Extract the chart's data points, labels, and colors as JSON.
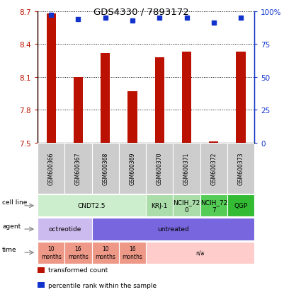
{
  "title": "GDS4330 / 7893172",
  "samples": [
    "GSM600366",
    "GSM600367",
    "GSM600368",
    "GSM600369",
    "GSM600370",
    "GSM600371",
    "GSM600372",
    "GSM600373"
  ],
  "bar_values": [
    8.68,
    8.1,
    8.32,
    7.97,
    8.28,
    8.33,
    7.51,
    8.33
  ],
  "percentile_values": [
    97,
    94,
    95,
    93,
    95,
    95,
    91,
    95
  ],
  "ylim": [
    7.5,
    8.7
  ],
  "yticks": [
    7.5,
    7.8,
    8.1,
    8.4,
    8.7
  ],
  "right_yticks": [
    0,
    25,
    50,
    75,
    100
  ],
  "right_ylabels": [
    "0",
    "25",
    "50",
    "75",
    "100%"
  ],
  "bar_color": "#bb1100",
  "dot_color": "#1133cc",
  "cell_line_data": [
    {
      "label": "CNDT2.5",
      "start": 0,
      "end": 4,
      "color": "#cceecc"
    },
    {
      "label": "KRJ-1",
      "start": 4,
      "end": 5,
      "color": "#aaddaa"
    },
    {
      "label": "NCIH_72\n0",
      "start": 5,
      "end": 6,
      "color": "#aaddaa"
    },
    {
      "label": "NCIH_72\n7",
      "start": 6,
      "end": 7,
      "color": "#55cc55"
    },
    {
      "label": "QGP",
      "start": 7,
      "end": 8,
      "color": "#33bb33"
    }
  ],
  "agent_data": [
    {
      "label": "octreotide",
      "start": 0,
      "end": 2,
      "color": "#ccbbee"
    },
    {
      "label": "untreated",
      "start": 2,
      "end": 8,
      "color": "#7766dd"
    }
  ],
  "time_data": [
    {
      "label": "10\nmonths",
      "start": 0,
      "end": 1,
      "color": "#ee9988"
    },
    {
      "label": "16\nmonths",
      "start": 1,
      "end": 2,
      "color": "#ee9988"
    },
    {
      "label": "10\nmonths",
      "start": 2,
      "end": 3,
      "color": "#ee9988"
    },
    {
      "label": "16\nmonths",
      "start": 3,
      "end": 4,
      "color": "#ee9988"
    },
    {
      "label": "n/a",
      "start": 4,
      "end": 8,
      "color": "#ffcccc"
    }
  ],
  "legend_items": [
    {
      "label": "transformed count",
      "color": "#bb1100",
      "marker": "s"
    },
    {
      "label": "percentile rank within the sample",
      "color": "#1133cc",
      "marker": "s"
    }
  ],
  "n_samples": 8,
  "bar_width": 0.35
}
